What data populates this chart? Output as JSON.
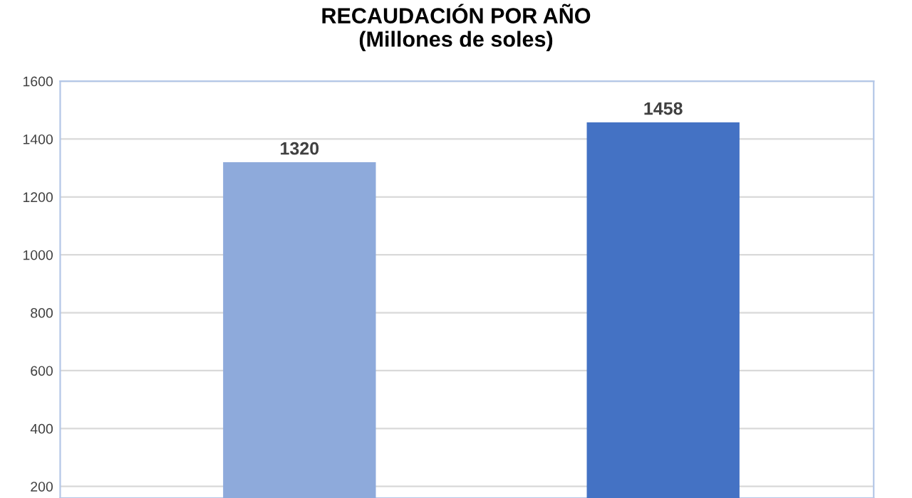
{
  "chart_data": {
    "type": "bar",
    "title": "RECAUDACIÓN POR AÑO\n(Millones de soles)",
    "categories": [
      null,
      null
    ],
    "values": [
      1320,
      1458
    ],
    "colors": [
      "#8eaadb",
      "#4472c4"
    ],
    "ylim": [
      160,
      1600
    ],
    "yticks": [
      200,
      400,
      600,
      800,
      1000,
      1200,
      1400,
      1600
    ],
    "grid": "y",
    "data_labels": true
  }
}
